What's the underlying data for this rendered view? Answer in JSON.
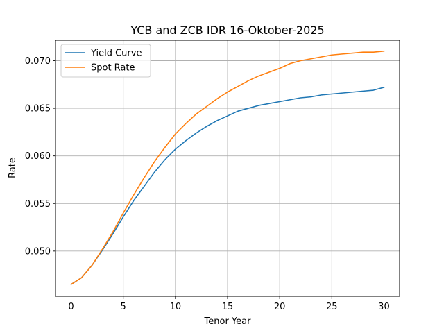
{
  "chart_data": {
    "type": "line",
    "title": "YCB and ZCB IDR 16-Oktober-2025",
    "xlabel": "Tenor Year",
    "ylabel": "Rate",
    "xlim": [
      -1.5,
      31.5
    ],
    "ylim": [
      0.04525,
      0.07215
    ],
    "x_ticks": [
      0,
      5,
      10,
      15,
      20,
      25,
      30
    ],
    "y_ticks": [
      0.05,
      0.055,
      0.06,
      0.065,
      0.07
    ],
    "grid": true,
    "legend": "upper-left",
    "x": [
      0,
      1,
      2,
      3,
      4,
      5,
      6,
      7,
      8,
      9,
      10,
      11,
      12,
      13,
      14,
      15,
      16,
      17,
      18,
      19,
      20,
      21,
      22,
      23,
      24,
      25,
      26,
      27,
      28,
      29,
      30
    ],
    "series": [
      {
        "name": "Yield Curve",
        "color": "#1f77b4",
        "values": [
          0.0465,
          0.0472,
          0.0485,
          0.0501,
          0.0518,
          0.0536,
          0.0553,
          0.0568,
          0.0583,
          0.0596,
          0.0607,
          0.0616,
          0.0624,
          0.0631,
          0.0637,
          0.0642,
          0.0647,
          0.065,
          0.0653,
          0.0655,
          0.0657,
          0.0659,
          0.0661,
          0.0662,
          0.0664,
          0.0665,
          0.0666,
          0.0667,
          0.0668,
          0.0669,
          0.0672
        ]
      },
      {
        "name": "Spot Rate",
        "color": "#ff7f0e",
        "values": [
          0.0465,
          0.0472,
          0.0485,
          0.0502,
          0.052,
          0.054,
          0.0559,
          0.0577,
          0.0594,
          0.0609,
          0.0623,
          0.0634,
          0.0644,
          0.0652,
          0.066,
          0.0667,
          0.0673,
          0.0679,
          0.0684,
          0.0688,
          0.0692,
          0.0697,
          0.07,
          0.0702,
          0.0704,
          0.0706,
          0.0707,
          0.0708,
          0.0709,
          0.0709,
          0.071
        ]
      }
    ]
  }
}
